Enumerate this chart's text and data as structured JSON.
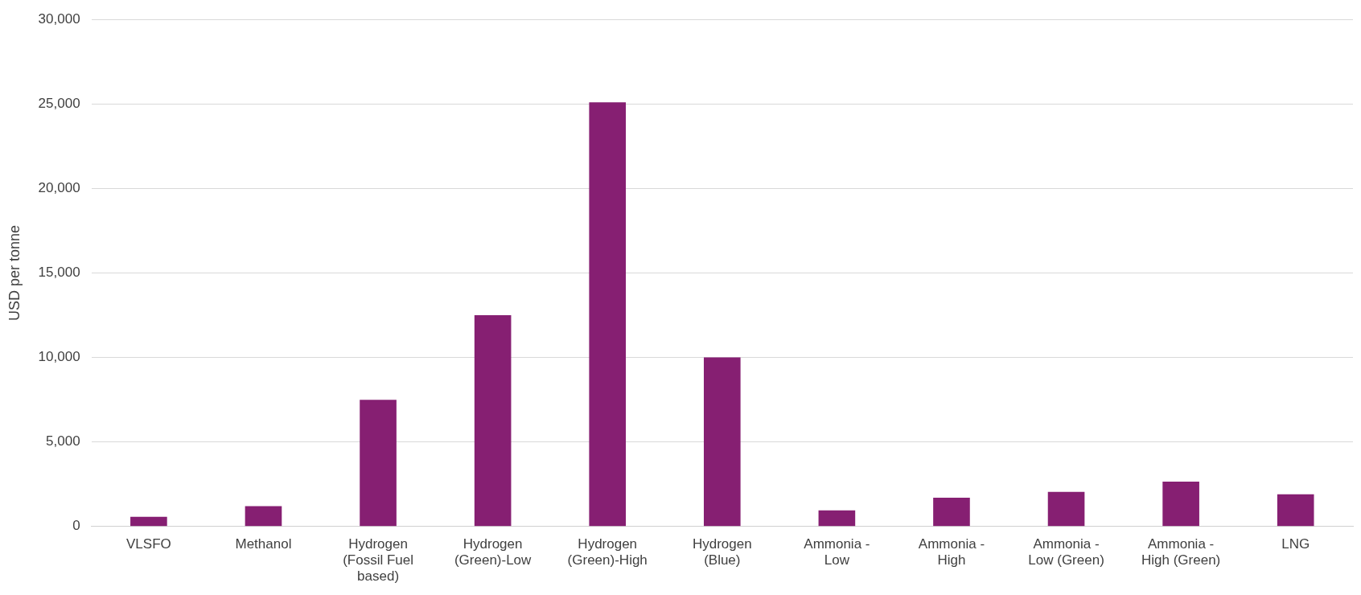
{
  "chart_data": {
    "type": "bar",
    "ylabel": "USD per tonne",
    "categories": [
      "VLSFO",
      "Methanol",
      "Hydrogen (Fossil Fuel based)",
      "Hydrogen (Green)-Low",
      "Hydrogen (Green)-High",
      "Hydrogen (Blue)",
      "Ammonia - Low",
      "Ammonia - High",
      "Ammonia - Low (Green)",
      "Ammonia - High (Green)",
      "LNG"
    ],
    "values": [
      570,
      1200,
      7500,
      12500,
      25100,
      10000,
      950,
      1700,
      2050,
      2650,
      1900
    ],
    "color": "#861f72",
    "ylim": [
      0,
      30000
    ],
    "yticks": [
      0,
      {
        "value": 5000,
        "label": "5,000"
      },
      {
        "value": 10000,
        "label": "10,000"
      },
      {
        "value": 15000,
        "label": "15,000"
      },
      {
        "value": 20000,
        "label": "20,000"
      },
      {
        "value": 25000,
        "label": "25,000"
      },
      {
        "value": 30000,
        "label": "30,000"
      }
    ],
    "grid": "y",
    "legend": false
  }
}
